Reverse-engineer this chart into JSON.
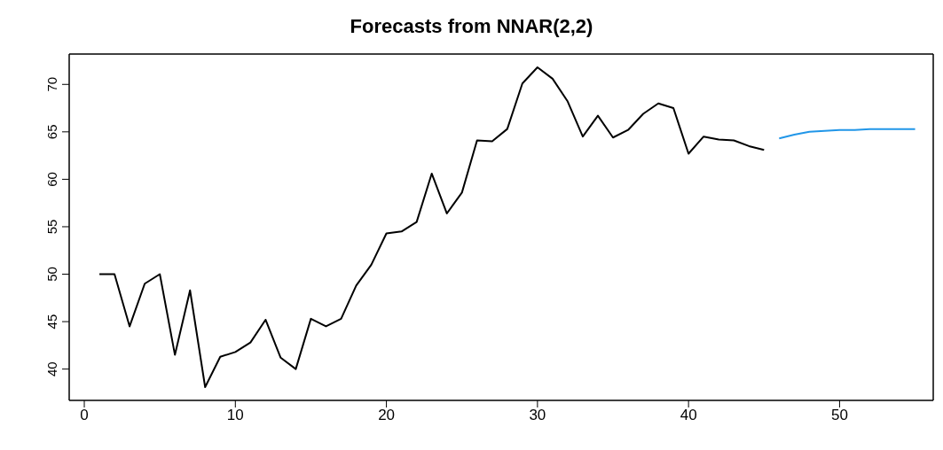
{
  "chart_data": {
    "type": "line",
    "title": "Forecasts from NNAR(2,2)",
    "xlim": [
      -1,
      56.2
    ],
    "xticks": [
      0,
      10,
      20,
      30,
      40,
      50
    ],
    "ylim": [
      36.7,
      73.2
    ],
    "yticks": [
      40,
      45,
      50,
      55,
      60,
      65,
      70
    ],
    "grid": false,
    "marker": "none",
    "line_style": "solid",
    "series": [
      {
        "color": "#000000",
        "x": [
          1,
          2,
          3,
          4,
          5,
          6,
          7,
          8,
          9,
          10,
          11,
          12,
          13,
          14,
          15,
          16,
          17,
          18,
          19,
          20,
          21,
          22,
          23,
          24,
          25,
          26,
          27,
          28,
          29,
          30,
          31,
          32,
          33,
          34,
          35,
          36,
          37,
          38,
          39,
          40,
          41,
          42,
          43,
          44,
          45
        ],
        "values": [
          50,
          50,
          44.5,
          49,
          50,
          41.5,
          48.3,
          38.1,
          41.3,
          41.8,
          42.8,
          45.2,
          41.2,
          40,
          45.3,
          44.5,
          45.3,
          48.8,
          51,
          54.3,
          54.5,
          55.5,
          60.6,
          56.4,
          58.6,
          64.1,
          64,
          65.3,
          70.1,
          71.8,
          70.6,
          68.2,
          64.5,
          66.7,
          64.4,
          65.2,
          66.9,
          68,
          67.5,
          62.7,
          64.5,
          64.2,
          64.1,
          63.5,
          63.1
        ]
      },
      {
        "color": "#2196e8",
        "x": [
          46,
          47,
          48,
          49,
          50,
          51,
          52,
          53,
          54,
          55
        ],
        "values": [
          64.3,
          64.7,
          65,
          65.1,
          65.2,
          65.2,
          65.3,
          65.3,
          65.3,
          65.3
        ]
      }
    ]
  }
}
